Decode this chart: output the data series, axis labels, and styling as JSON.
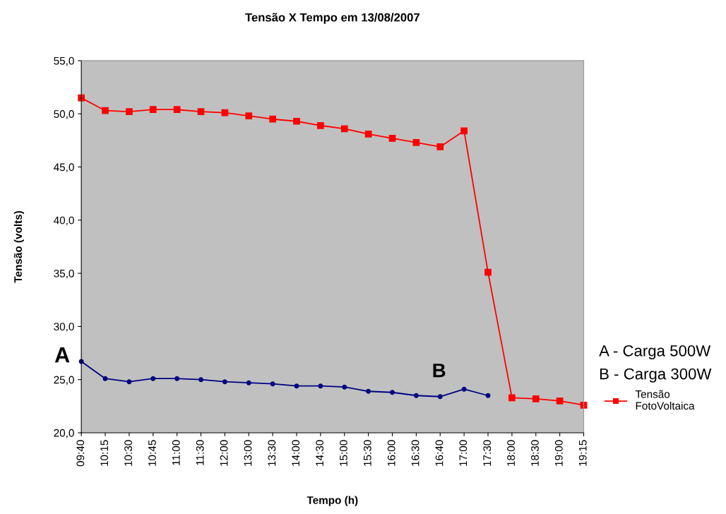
{
  "chart_data": {
    "type": "line",
    "title": "Tensão X Tempo em 13/08/2007",
    "xlabel": "Tempo (h)",
    "ylabel": "Tensão (volts)",
    "categories": [
      "09:40",
      "10:15",
      "10:30",
      "10:45",
      "11:00",
      "11:30",
      "12:00",
      "13:00",
      "13:30",
      "14:00",
      "14:30",
      "15:00",
      "15:30",
      "16:00",
      "16:30",
      "16:40",
      "17:00",
      "17:30",
      "18:00",
      "18:30",
      "19:00",
      "19:15"
    ],
    "series": [
      {
        "color": "#000080",
        "marker": "circle",
        "values": [
          26.7,
          25.1,
          24.8,
          25.1,
          25.1,
          25.0,
          24.8,
          24.7,
          24.6,
          24.4,
          24.4,
          24.3,
          23.9,
          23.8,
          23.5,
          23.4,
          24.1,
          23.5,
          null,
          null,
          null,
          null
        ]
      },
      {
        "name": "Tensão FotoVoltaica",
        "color": "#ff0000",
        "marker": "square",
        "values": [
          51.5,
          50.3,
          50.2,
          50.4,
          50.4,
          50.2,
          50.1,
          49.8,
          49.5,
          49.3,
          48.9,
          48.6,
          48.1,
          47.7,
          47.3,
          46.9,
          48.4,
          35.1,
          23.3,
          23.2,
          23.0,
          22.6
        ]
      }
    ],
    "ylim": [
      20,
      55
    ],
    "yticks": [
      {
        "value": 20,
        "label": "20,0"
      },
      {
        "value": 25,
        "label": "25,0"
      },
      {
        "value": 30,
        "label": "30,0"
      },
      {
        "value": 35,
        "label": "35,0"
      },
      {
        "value": 40,
        "label": "40,0"
      },
      {
        "value": 45,
        "label": "45,0"
      },
      {
        "value": 50,
        "label": "50,0"
      },
      {
        "value": 55,
        "label": "55,0"
      }
    ],
    "grid": false,
    "legend": "right",
    "line_style": "solid",
    "annotations": [
      "A",
      "B",
      "A - Carga 500W",
      "B - Carga 300W"
    ]
  }
}
